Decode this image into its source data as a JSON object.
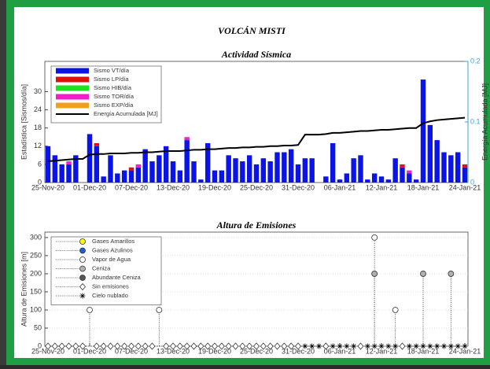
{
  "title": "VOLCÁN MISTI",
  "chart_data": [
    {
      "type": "bar",
      "stacked": true,
      "title": "Actividad Sísmica",
      "ylabel": "Estadística [Sismos/día]",
      "y2label": "Energía Acumulada [MJ]",
      "categories": [
        "25-Nov-20",
        null,
        null,
        null,
        null,
        null,
        "01-Dec-20",
        null,
        null,
        null,
        null,
        null,
        "07-Dec-20",
        null,
        null,
        null,
        null,
        null,
        "13-Dec-20",
        null,
        null,
        null,
        null,
        null,
        "19-Dec-20",
        null,
        null,
        null,
        null,
        null,
        "25-Dec-20",
        null,
        null,
        null,
        null,
        null,
        "31-Dec-20",
        null,
        null,
        null,
        null,
        null,
        "06-Jan-21",
        null,
        null,
        null,
        null,
        null,
        "12-Jan-21",
        null,
        null,
        null,
        null,
        null,
        "18-Jan-21",
        null,
        null,
        null,
        null,
        null,
        "24-Jan-21"
      ],
      "ylim": [
        0,
        40
      ],
      "yticks": [
        0,
        6,
        12,
        18,
        24,
        30
      ],
      "y2lim": [
        0,
        0.2
      ],
      "y2ticks": [
        0,
        0.1,
        0.2
      ],
      "grid": false,
      "legend": "upper left",
      "series": [
        {
          "name": "Sismo VT/día",
          "color": "#0a14e6",
          "values": [
            12,
            9,
            6,
            6,
            9,
            0,
            16,
            12,
            2,
            9,
            3,
            4,
            4,
            5,
            11,
            7,
            9,
            12,
            7,
            4,
            14,
            7,
            1,
            13,
            4,
            4,
            9,
            8,
            7,
            9,
            6,
            8,
            7,
            10,
            10,
            11,
            6,
            8,
            8,
            0,
            2,
            13,
            1,
            3,
            8,
            9,
            1,
            3,
            2,
            1,
            8,
            5,
            3,
            1,
            34,
            19,
            14,
            10,
            9,
            10,
            5
          ]
        },
        {
          "name": "Sismo LP/día",
          "color": "#e01010",
          "values": [
            0,
            0,
            0,
            0,
            0,
            0,
            0,
            1,
            0,
            0,
            0,
            0,
            1,
            0,
            0,
            0,
            0,
            0,
            0,
            0,
            0,
            0,
            0,
            0,
            0,
            0,
            0,
            0,
            0,
            0,
            0,
            0,
            0,
            0,
            0,
            0,
            0,
            0,
            0,
            0,
            0,
            0,
            0,
            0,
            0,
            0,
            0,
            0,
            0,
            0,
            0,
            1,
            0,
            0,
            0,
            0,
            0,
            0,
            0,
            0,
            1
          ]
        },
        {
          "name": "Sismo HIB/día",
          "color": "#20e020",
          "values": [
            0,
            0,
            0,
            0,
            0,
            0,
            0,
            0,
            0,
            0,
            0,
            0,
            0,
            0,
            0,
            0,
            0,
            0,
            0,
            0,
            0,
            0,
            0,
            0,
            0,
            0,
            0,
            0,
            0,
            0,
            0,
            0,
            0,
            0,
            0,
            0,
            0,
            0,
            0,
            0,
            0,
            0,
            0,
            0,
            0,
            0,
            0,
            0,
            0,
            0,
            0,
            0,
            0,
            0,
            0,
            0,
            0,
            0,
            0,
            0,
            0
          ]
        },
        {
          "name": "Sismo TOR/día",
          "color": "#f020c8",
          "values": [
            0,
            0,
            0,
            1,
            0,
            0,
            0,
            0,
            0,
            0,
            0,
            0,
            0,
            1,
            0,
            0,
            0,
            0,
            0,
            0,
            1,
            0,
            0,
            0,
            0,
            0,
            0,
            0,
            0,
            0,
            0,
            0,
            0,
            0,
            0,
            0,
            0,
            0,
            0,
            0,
            0,
            0,
            0,
            0,
            0,
            0,
            0,
            0,
            0,
            0,
            0,
            0,
            1,
            0,
            0,
            0,
            0,
            0,
            0,
            0,
            0
          ]
        },
        {
          "name": "Sismo EXP/día",
          "color": "#f0a020",
          "values": [
            0,
            0,
            0,
            0,
            0,
            0,
            0,
            0,
            0,
            0,
            0,
            0,
            0,
            0,
            0,
            0,
            0,
            0,
            0,
            0,
            0,
            0,
            0,
            0,
            0,
            0,
            0,
            0,
            0,
            0,
            0,
            0,
            0,
            0,
            0,
            0,
            0,
            0,
            0,
            0,
            0,
            0,
            0,
            0,
            0,
            0,
            0,
            0,
            0,
            0,
            0,
            0,
            0,
            0,
            0,
            0,
            0,
            0,
            0,
            0,
            0
          ]
        },
        {
          "name": "Energía Acumulada [MJ]",
          "color": "#000000",
          "type": "line",
          "axis": "y2",
          "values": [
            0.035,
            0.036,
            0.037,
            0.038,
            0.039,
            0.039,
            0.046,
            0.047,
            0.047,
            0.048,
            0.048,
            0.048,
            0.049,
            0.049,
            0.05,
            0.05,
            0.051,
            0.052,
            0.052,
            0.052,
            0.053,
            0.054,
            0.054,
            0.055,
            0.055,
            0.056,
            0.057,
            0.057,
            0.058,
            0.058,
            0.059,
            0.059,
            0.06,
            0.06,
            0.061,
            0.061,
            0.062,
            0.079,
            0.079,
            0.079,
            0.08,
            0.082,
            0.082,
            0.083,
            0.084,
            0.085,
            0.085,
            0.086,
            0.087,
            0.087,
            0.088,
            0.089,
            0.09,
            0.09,
            0.098,
            0.101,
            0.103,
            0.104,
            0.105,
            0.106,
            0.107
          ]
        }
      ]
    },
    {
      "type": "scatter",
      "title": "Altura de Emisiones",
      "ylabel": "Altura de Emisiones [m]",
      "categories": [
        "25-Nov-20",
        null,
        null,
        null,
        null,
        null,
        "01-Dec-20",
        null,
        null,
        null,
        null,
        null,
        "07-Dec-20",
        null,
        null,
        null,
        null,
        null,
        "13-Dec-20",
        null,
        null,
        null,
        null,
        null,
        "19-Dec-20",
        null,
        null,
        null,
        null,
        null,
        "25-Dec-20",
        null,
        null,
        null,
        null,
        null,
        "31-Dec-20",
        null,
        null,
        null,
        null,
        null,
        "06-Jan-21",
        null,
        null,
        null,
        null,
        null,
        "12-Jan-21",
        null,
        null,
        null,
        null,
        null,
        "18-Jan-21",
        null,
        null,
        null,
        null,
        null,
        "24-Jan-21"
      ],
      "ylim": [
        0,
        315
      ],
      "yticks": [
        0,
        50,
        100,
        150,
        200,
        250,
        300
      ],
      "grid": true,
      "legend": "upper left",
      "series": [
        {
          "name": "Gases Amarillos",
          "color": "#ffff00",
          "marker": "o",
          "values": [
            null,
            null,
            null,
            null,
            null,
            null,
            null,
            null,
            null,
            null,
            null,
            null,
            null,
            null,
            null,
            null,
            null,
            null,
            null,
            null,
            null,
            null,
            null,
            null,
            null,
            null,
            null,
            null,
            null,
            null,
            null,
            null,
            null,
            null,
            null,
            null,
            null,
            null,
            null,
            null,
            null,
            null,
            null,
            null,
            null,
            null,
            null,
            null,
            null,
            null,
            null,
            null,
            null,
            null,
            null,
            null,
            null,
            null,
            null,
            null,
            null
          ]
        },
        {
          "name": "Gases Azulinos",
          "color": "#1f5fd0",
          "marker": "o",
          "values": [
            null,
            null,
            null,
            null,
            null,
            null,
            null,
            null,
            null,
            null,
            null,
            null,
            null,
            null,
            null,
            null,
            null,
            null,
            null,
            null,
            null,
            null,
            null,
            null,
            null,
            null,
            null,
            null,
            null,
            null,
            null,
            null,
            null,
            null,
            null,
            null,
            null,
            null,
            null,
            null,
            null,
            null,
            null,
            null,
            null,
            null,
            null,
            null,
            null,
            null,
            null,
            null,
            null,
            null,
            null,
            null,
            null,
            null,
            null,
            null,
            null
          ]
        },
        {
          "name": "Vapor de Agua",
          "color": "#ffffff",
          "marker": "o",
          "values": [
            null,
            null,
            null,
            null,
            null,
            null,
            100,
            null,
            null,
            null,
            null,
            null,
            null,
            null,
            null,
            null,
            100,
            null,
            null,
            null,
            null,
            null,
            null,
            null,
            null,
            null,
            null,
            null,
            null,
            null,
            null,
            null,
            null,
            null,
            null,
            null,
            null,
            null,
            null,
            null,
            null,
            null,
            null,
            null,
            null,
            null,
            null,
            300,
            null,
            null,
            100,
            null,
            null,
            null,
            null,
            null,
            null,
            null,
            null,
            null,
            null
          ]
        },
        {
          "name": "Ceniza",
          "color": "#b0b0b0",
          "marker": "o",
          "values": [
            null,
            null,
            null,
            null,
            null,
            null,
            null,
            null,
            null,
            null,
            null,
            null,
            null,
            null,
            null,
            null,
            null,
            null,
            null,
            null,
            null,
            null,
            null,
            null,
            null,
            null,
            null,
            null,
            null,
            null,
            null,
            null,
            null,
            null,
            null,
            null,
            null,
            null,
            null,
            null,
            null,
            null,
            null,
            null,
            null,
            null,
            null,
            200,
            null,
            null,
            null,
            null,
            null,
            null,
            200,
            null,
            null,
            null,
            200,
            null,
            null
          ]
        },
        {
          "name": "Abundante Ceniza",
          "color": "#555555",
          "marker": "o",
          "values": [
            null,
            null,
            null,
            null,
            null,
            null,
            null,
            null,
            null,
            null,
            null,
            null,
            null,
            null,
            null,
            null,
            null,
            null,
            null,
            null,
            null,
            null,
            null,
            null,
            null,
            null,
            null,
            null,
            null,
            null,
            null,
            null,
            null,
            null,
            null,
            null,
            null,
            null,
            null,
            null,
            null,
            null,
            null,
            null,
            null,
            null,
            null,
            null,
            null,
            null,
            null,
            null,
            null,
            null,
            null,
            null,
            null,
            null,
            null,
            null,
            null
          ]
        },
        {
          "name": "Sin emisiones",
          "color": "#ffffff",
          "marker": "d",
          "values": [
            0,
            0,
            0,
            0,
            0,
            0,
            null,
            0,
            0,
            0,
            0,
            0,
            0,
            0,
            0,
            0,
            null,
            0,
            0,
            0,
            0,
            0,
            0,
            0,
            0,
            0,
            0,
            0,
            0,
            0,
            0,
            0,
            0,
            0,
            0,
            0,
            0,
            null,
            null,
            null,
            0,
            null,
            null,
            null,
            null,
            0,
            null,
            null,
            null,
            null,
            null,
            0,
            null,
            null,
            null,
            null,
            null,
            null,
            null,
            null,
            null
          ]
        },
        {
          "name": "Cielo nublado",
          "color": "#000000",
          "marker": "*",
          "values": [
            null,
            null,
            null,
            null,
            null,
            null,
            null,
            null,
            null,
            null,
            null,
            null,
            null,
            null,
            null,
            null,
            null,
            null,
            null,
            null,
            null,
            null,
            null,
            null,
            null,
            null,
            null,
            null,
            null,
            null,
            null,
            null,
            null,
            null,
            null,
            null,
            null,
            0,
            0,
            0,
            null,
            0,
            0,
            0,
            0,
            null,
            0,
            0,
            0,
            0,
            0,
            null,
            0,
            0,
            0,
            0,
            0,
            0,
            0,
            0,
            0
          ]
        }
      ]
    }
  ]
}
